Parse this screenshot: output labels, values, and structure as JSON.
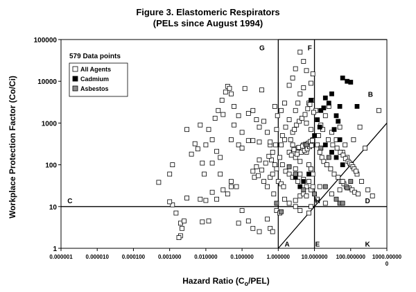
{
  "chart_data": {
    "type": "scatter",
    "title": "Figure 3.  Elastomeric Respirators",
    "subtitle": "(PELs since August 1994)",
    "xlabel_pre": "Hazard Ratio (C",
    "xlabel_sub": "o",
    "xlabel_post": "/PEL)",
    "ylabel": "Workplace Protection Factor (Co/Ci)",
    "x_scale": "log",
    "y_scale": "log",
    "xlim": [
      1e-06,
      1000
    ],
    "ylim": [
      1,
      100000
    ],
    "x_ticks": [
      1e-06,
      1e-05,
      0.0001,
      0.001,
      0.01,
      0.1,
      1,
      10,
      100,
      1000
    ],
    "x_tick_labels": [
      "0.000001",
      "0.000010",
      "0.000100",
      "0.001000",
      "0.010000",
      "0.100000",
      "1.000000",
      "10.000000",
      "100.000000",
      "1000.00000"
    ],
    "x_tick_overflow": "0",
    "y_ticks": [
      1,
      10,
      100,
      1000,
      10000,
      100000
    ],
    "y_tick_labels": [
      "1",
      "10",
      "100",
      "1000",
      "10000",
      "100000"
    ],
    "grid": false,
    "legend_header": "579 Data points",
    "legend_position": "top-left",
    "reference_lines": [
      {
        "orientation": "vertical",
        "x": 1,
        "y_range": [
          1,
          100000
        ]
      },
      {
        "orientation": "vertical",
        "x": 10,
        "y_range": [
          1,
          100000
        ]
      },
      {
        "orientation": "horizontal",
        "y": 10,
        "x_range": [
          1e-06,
          1000
        ]
      },
      {
        "orientation": "horizontal",
        "y": 100000,
        "x_range": [
          1,
          1000
        ]
      },
      {
        "orientation": "diagonal",
        "from": [
          1,
          1
        ],
        "to": [
          10,
          10
        ]
      },
      {
        "orientation": "diagonal",
        "from": [
          10,
          10
        ],
        "to": [
          1000,
          1000
        ]
      }
    ],
    "zone_labels": [
      {
        "label": "G",
        "x": 0.3,
        "y": 55000
      },
      {
        "label": "F",
        "x": 6.5,
        "y": 55000
      },
      {
        "label": "B",
        "x": 300,
        "y": 4300
      },
      {
        "label": "C",
        "x": 1.5e-06,
        "y": 12
      },
      {
        "label": "H",
        "x": 10.5,
        "y": 12
      },
      {
        "label": "D",
        "x": 250,
        "y": 12
      },
      {
        "label": "A",
        "x": 1.5,
        "y": 1.1
      },
      {
        "label": "E",
        "x": 10.5,
        "y": 1.1
      },
      {
        "label": "K",
        "x": 250,
        "y": 1.1
      }
    ],
    "series": [
      {
        "name": "All Agents",
        "marker": "open-square",
        "color": "#ffffff",
        "points": [
          [
            0.0005,
            38
          ],
          [
            0.001,
            60
          ],
          [
            0.0012,
            100
          ],
          [
            0.0012,
            11
          ],
          [
            0.0015,
            7
          ],
          [
            0.002,
            4
          ],
          [
            0.002,
            2
          ],
          [
            0.0025,
            4.5
          ],
          [
            0.0018,
            1.8
          ],
          [
            0.003,
            16
          ],
          [
            0.0022,
            3
          ],
          [
            0.001,
            13
          ],
          [
            0.003,
            700
          ],
          [
            0.004,
            180
          ],
          [
            0.005,
            320
          ],
          [
            0.006,
            240
          ],
          [
            0.007,
            900
          ],
          [
            0.008,
            110
          ],
          [
            0.009,
            60
          ],
          [
            0.012,
            700
          ],
          [
            0.015,
            110
          ],
          [
            0.02,
            210
          ],
          [
            0.025,
            150
          ],
          [
            0.03,
            1600
          ],
          [
            0.04,
            7600
          ],
          [
            0.05,
            400
          ],
          [
            0.06,
            900
          ],
          [
            0.08,
            300
          ],
          [
            0.1,
            250
          ],
          [
            0.12,
            6700
          ],
          [
            0.15,
            380
          ],
          [
            0.2,
            380
          ],
          [
            0.2,
            70
          ],
          [
            0.22,
            50
          ],
          [
            0.3,
            350
          ],
          [
            0.35,
            6200
          ],
          [
            0.4,
            1100
          ],
          [
            0.5,
            600
          ],
          [
            0.6,
            300
          ],
          [
            0.7,
            200
          ],
          [
            0.8,
            100
          ],
          [
            0.01,
            300
          ],
          [
            0.015,
            400
          ],
          [
            0.025,
            60
          ],
          [
            0.03,
            25
          ],
          [
            0.04,
            20
          ],
          [
            0.05,
            40
          ],
          [
            0.07,
            30
          ],
          [
            0.08,
            4
          ],
          [
            0.1,
            8
          ],
          [
            0.15,
            4.5
          ],
          [
            0.3,
            2.5
          ],
          [
            0.2,
            3
          ],
          [
            0.012,
            4.5
          ],
          [
            0.008,
            4.3
          ],
          [
            0.05,
            30
          ],
          [
            0.02,
            15
          ],
          [
            0.015,
            22
          ],
          [
            0.01,
            14
          ],
          [
            0.007,
            15
          ],
          [
            0.4,
            40
          ],
          [
            0.5,
            30
          ],
          [
            0.6,
            50
          ],
          [
            0.5,
            5
          ],
          [
            0.6,
            3
          ],
          [
            0.7,
            2.5
          ],
          [
            0.9,
            8
          ],
          [
            1.1,
            7
          ],
          [
            1.5,
            15
          ],
          [
            2,
            12
          ],
          [
            3,
            14
          ],
          [
            4,
            18
          ],
          [
            5,
            20
          ],
          [
            6,
            18
          ],
          [
            7,
            7
          ],
          [
            8,
            10
          ],
          [
            3,
            10
          ],
          [
            4,
            8
          ],
          [
            1.3,
            500
          ],
          [
            1.6,
            800
          ],
          [
            2,
            1200
          ],
          [
            2.5,
            600
          ],
          [
            3,
            2000
          ],
          [
            3.5,
            3000
          ],
          [
            4,
            5000
          ],
          [
            5,
            7000
          ],
          [
            6,
            18000
          ],
          [
            5,
            30000
          ],
          [
            4,
            50000
          ],
          [
            3,
            20000
          ],
          [
            2.5,
            12000
          ],
          [
            2,
            8000
          ],
          [
            1.5,
            3000
          ],
          [
            1.2,
            2000
          ],
          [
            6,
            1000
          ],
          [
            8,
            700
          ],
          [
            9,
            400
          ],
          [
            7,
            3000
          ],
          [
            9,
            15000
          ],
          [
            8,
            9000
          ],
          [
            1.2,
            300
          ],
          [
            1.5,
            400
          ],
          [
            2,
            200
          ],
          [
            2.5,
            300
          ],
          [
            3,
            150
          ],
          [
            3.5,
            250
          ],
          [
            4,
            120
          ],
          [
            5,
            300
          ],
          [
            6,
            200
          ],
          [
            7,
            100
          ],
          [
            8,
            80
          ],
          [
            9,
            60
          ],
          [
            1.1,
            150
          ],
          [
            1.3,
            100
          ],
          [
            1.6,
            70
          ],
          [
            2,
            60
          ],
          [
            2.5,
            50
          ],
          [
            3,
            80
          ],
          [
            3.5,
            40
          ],
          [
            4,
            60
          ],
          [
            5,
            45
          ],
          [
            6,
            30
          ],
          [
            7,
            40
          ],
          [
            8,
            25
          ],
          [
            9,
            30
          ],
          [
            0.9,
            80
          ],
          [
            0.85,
            300
          ],
          [
            0.9,
            700
          ],
          [
            0.95,
            1500
          ],
          [
            0.8,
            2500
          ],
          [
            15,
            900
          ],
          [
            20,
            1500
          ],
          [
            25,
            2500
          ],
          [
            30,
            600
          ],
          [
            40,
            400
          ],
          [
            50,
            800
          ],
          [
            60,
            200
          ],
          [
            70,
            300
          ],
          [
            80,
            150
          ],
          [
            100,
            100
          ],
          [
            150,
            60
          ],
          [
            200,
            40
          ],
          [
            300,
            25
          ],
          [
            400,
            18
          ],
          [
            600,
            2000
          ],
          [
            120,
            400
          ],
          [
            180,
            800
          ],
          [
            250,
            250
          ],
          [
            12,
            300
          ],
          [
            14,
            200
          ],
          [
            16,
            150
          ],
          [
            18,
            120
          ],
          [
            22,
            100
          ],
          [
            28,
            80
          ],
          [
            35,
            60
          ],
          [
            45,
            50
          ],
          [
            55,
            40
          ],
          [
            65,
            35
          ],
          [
            75,
            30
          ],
          [
            90,
            28
          ],
          [
            110,
            25
          ],
          [
            130,
            22
          ],
          [
            160,
            20
          ],
          [
            13,
            500
          ],
          [
            17,
            700
          ],
          [
            24,
            400
          ],
          [
            32,
            300
          ],
          [
            42,
            250
          ],
          [
            52,
            200
          ],
          [
            62,
            170
          ],
          [
            72,
            140
          ],
          [
            85,
            120
          ],
          [
            95,
            110
          ],
          [
            105,
            100
          ],
          [
            115,
            90
          ],
          [
            125,
            80
          ],
          [
            140,
            70
          ],
          [
            11,
            2000
          ],
          [
            12,
            15
          ],
          [
            14,
            30
          ],
          [
            20,
            12
          ],
          [
            30,
            20
          ],
          [
            50,
            25
          ],
          [
            60,
            40
          ],
          [
            1.0,
            40
          ],
          [
            1.2,
            35
          ],
          [
            1.4,
            30
          ],
          [
            0.75,
            20
          ],
          [
            0.7,
            60
          ],
          [
            0.65,
            130
          ],
          [
            0.6,
            350
          ],
          [
            0.3,
            800
          ],
          [
            0.25,
            1200
          ],
          [
            0.2,
            2000
          ],
          [
            0.15,
            1700
          ],
          [
            0.1,
            600
          ],
          [
            0.08,
            1500
          ],
          [
            0.06,
            2500
          ],
          [
            0.05,
            5000
          ],
          [
            0.045,
            6800
          ],
          [
            0.035,
            5500
          ],
          [
            0.028,
            3500
          ],
          [
            0.022,
            2000
          ],
          [
            0.018,
            1300
          ],
          [
            0.25,
            90
          ],
          [
            0.28,
            55
          ],
          [
            0.35,
            75
          ],
          [
            0.45,
            110
          ],
          [
            0.55,
            160
          ],
          [
            0.3,
            130
          ],
          [
            2.2,
            400
          ],
          [
            2.8,
            700
          ],
          [
            3.2,
            900
          ],
          [
            3.8,
            1100
          ],
          [
            4.5,
            1300
          ],
          [
            5.5,
            1600
          ],
          [
            6.5,
            2200
          ],
          [
            7.5,
            2800
          ],
          [
            8.5,
            3500
          ],
          [
            9.5,
            1800
          ],
          [
            2.3,
            170
          ],
          [
            2.7,
            230
          ],
          [
            3.3,
            180
          ],
          [
            3.7,
            260
          ],
          [
            4.3,
            200
          ],
          [
            4.7,
            280
          ],
          [
            5.3,
            220
          ],
          [
            5.7,
            310
          ],
          [
            6.3,
            240
          ],
          [
            6.7,
            330
          ],
          [
            7.3,
            270
          ],
          [
            7.7,
            360
          ],
          [
            8.3,
            290
          ],
          [
            8.7,
            380
          ]
        ]
      },
      {
        "name": "Cadmium",
        "marker": "filled-square",
        "color": "#000000",
        "points": [
          [
            10,
            500
          ],
          [
            12,
            1200
          ],
          [
            15,
            2000
          ],
          [
            20,
            4000
          ],
          [
            25,
            3000
          ],
          [
            30,
            5000
          ],
          [
            40,
            1500
          ],
          [
            50,
            2500
          ],
          [
            60,
            12000
          ],
          [
            80,
            10000
          ],
          [
            100,
            9500
          ],
          [
            150,
            2500
          ],
          [
            20,
            300
          ],
          [
            30,
            200
          ],
          [
            40,
            150
          ],
          [
            50,
            400
          ],
          [
            60,
            100
          ],
          [
            4,
            30
          ],
          [
            5,
            40
          ],
          [
            3,
            50
          ],
          [
            7,
            60
          ],
          [
            35,
            700
          ],
          [
            45,
            1100
          ],
          [
            14,
            800
          ],
          [
            18,
            2300
          ],
          [
            8,
            3500
          ]
        ]
      },
      {
        "name": "Asbestos",
        "marker": "gray-square",
        "color": "#8a8a8a",
        "points": [
          [
            0.9,
            12
          ],
          [
            1.2,
            7.5
          ],
          [
            5,
            25
          ],
          [
            10,
            20
          ],
          [
            20,
            30
          ],
          [
            40,
            15
          ],
          [
            50,
            12
          ],
          [
            60,
            12
          ],
          [
            80,
            28
          ],
          [
            100,
            40
          ],
          [
            3,
            60
          ],
          [
            6,
            300
          ],
          [
            15,
            250
          ],
          [
            25,
            150
          ],
          [
            2,
            90
          ]
        ]
      }
    ]
  }
}
